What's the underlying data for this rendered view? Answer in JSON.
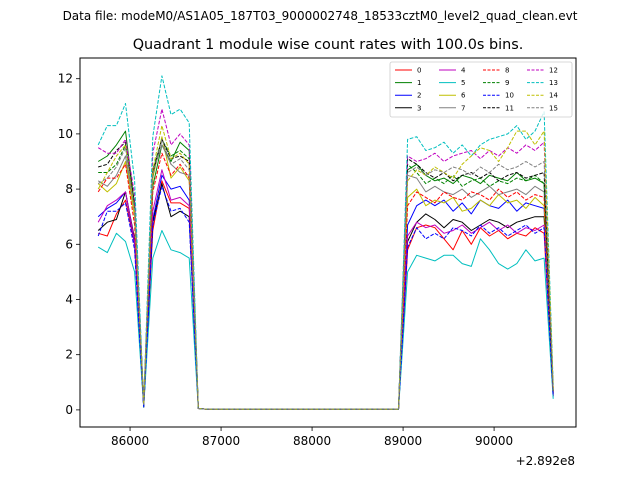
{
  "figure": {
    "suptitle": "Data file: modeM0/AS1A05_187T03_9000002748_18533cztM0_level2_quad_clean.evt"
  },
  "chart_data": {
    "type": "line",
    "title": "Quadrant 1 module wise count rates with 100.0s bins.",
    "xlabel": "",
    "ylabel": "",
    "x_offset_label": "+2.892e8",
    "xlim": [
      85450,
      90900
    ],
    "ylim": [
      -0.62,
      12.75
    ],
    "xticks": [
      86000,
      87000,
      88000,
      89000,
      90000
    ],
    "xtick_labels": [
      "86000",
      "87000",
      "88000",
      "89000",
      "90000"
    ],
    "yticks": [
      0,
      2,
      4,
      6,
      8,
      10,
      12
    ],
    "ytick_labels": [
      "0",
      "2",
      "4",
      "6",
      "8",
      "10",
      "12"
    ],
    "legend_position": "top-right",
    "legend_columns": 4,
    "x": [
      85650,
      85750,
      85850,
      85950,
      86050,
      86150,
      86250,
      86350,
      86450,
      86550,
      86650,
      86750,
      86850,
      86950,
      87050,
      87150,
      87250,
      87350,
      87450,
      87550,
      87650,
      87750,
      87850,
      87950,
      88050,
      88150,
      88250,
      88350,
      88450,
      88550,
      88650,
      88750,
      88850,
      88950,
      89050,
      89150,
      89250,
      89350,
      89450,
      89550,
      89650,
      89750,
      89850,
      89950,
      90050,
      90150,
      90250,
      90350,
      90450,
      90550,
      90650
    ],
    "series": [
      {
        "name": "0",
        "color": "#ff0000",
        "style": "solid",
        "values": [
          6.4,
          6.3,
          7.1,
          7.6,
          6.0,
          0.1,
          6.5,
          8.3,
          7.5,
          7.5,
          7.3,
          0.05,
          0.02,
          0.02,
          0.02,
          0.02,
          0.02,
          0.02,
          0.02,
          0.02,
          0.02,
          0.02,
          0.02,
          0.02,
          0.02,
          0.02,
          0.02,
          0.02,
          0.02,
          0.02,
          0.02,
          0.02,
          0.02,
          0.02,
          5.8,
          6.6,
          6.7,
          6.6,
          6.2,
          5.8,
          6.5,
          6.0,
          6.6,
          6.3,
          6.5,
          6.2,
          6.4,
          6.3,
          6.6,
          6.4,
          0.5
        ]
      },
      {
        "name": "1",
        "color": "#008000",
        "style": "solid",
        "values": [
          9.0,
          9.2,
          9.6,
          10.1,
          7.4,
          0.2,
          8.1,
          9.6,
          9.0,
          9.7,
          9.4,
          0.05,
          0.02,
          0.02,
          0.02,
          0.02,
          0.02,
          0.02,
          0.02,
          0.02,
          0.02,
          0.02,
          0.02,
          0.02,
          0.02,
          0.02,
          0.02,
          0.02,
          0.02,
          0.02,
          0.02,
          0.02,
          0.02,
          0.02,
          8.7,
          8.9,
          8.5,
          8.3,
          8.4,
          8.2,
          8.5,
          8.4,
          8.2,
          8.5,
          8.4,
          8.3,
          8.6,
          8.3,
          8.4,
          8.2,
          0.7
        ]
      },
      {
        "name": "2",
        "color": "#0000ff",
        "style": "solid",
        "values": [
          7.0,
          7.3,
          7.5,
          7.9,
          6.0,
          0.1,
          6.9,
          8.5,
          8.0,
          8.1,
          7.6,
          0.05,
          0.02,
          0.02,
          0.02,
          0.02,
          0.02,
          0.02,
          0.02,
          0.02,
          0.02,
          0.02,
          0.02,
          0.02,
          0.02,
          0.02,
          0.02,
          0.02,
          0.02,
          0.02,
          0.02,
          0.02,
          0.02,
          0.02,
          6.7,
          7.4,
          7.6,
          7.4,
          7.6,
          7.2,
          7.5,
          7.1,
          7.6,
          7.4,
          7.3,
          7.6,
          7.2,
          7.5,
          7.4,
          7.3,
          0.5
        ]
      },
      {
        "name": "3",
        "color": "#000000",
        "style": "solid",
        "values": [
          6.5,
          6.8,
          6.9,
          7.9,
          6.2,
          0.1,
          6.8,
          8.2,
          7.0,
          7.2,
          7.0,
          0.05,
          0.02,
          0.02,
          0.02,
          0.02,
          0.02,
          0.02,
          0.02,
          0.02,
          0.02,
          0.02,
          0.02,
          0.02,
          0.02,
          0.02,
          0.02,
          0.02,
          0.02,
          0.02,
          0.02,
          0.02,
          0.02,
          0.02,
          6.1,
          6.8,
          7.1,
          6.9,
          6.6,
          6.9,
          6.8,
          6.5,
          6.7,
          6.9,
          6.8,
          6.6,
          6.8,
          6.9,
          7.0,
          7.0,
          0.6
        ]
      },
      {
        "name": "4",
        "color": "#bf00bf",
        "style": "solid",
        "values": [
          6.8,
          7.4,
          7.6,
          7.9,
          6.1,
          0.1,
          7.2,
          8.7,
          7.6,
          7.7,
          7.4,
          0.05,
          0.02,
          0.02,
          0.02,
          0.02,
          0.02,
          0.02,
          0.02,
          0.02,
          0.02,
          0.02,
          0.02,
          0.02,
          0.02,
          0.02,
          0.02,
          0.02,
          0.02,
          0.02,
          0.02,
          0.02,
          0.02,
          0.02,
          6.3,
          6.8,
          6.6,
          6.7,
          6.4,
          6.5,
          6.7,
          6.4,
          6.6,
          6.8,
          6.5,
          6.7,
          6.4,
          6.6,
          6.5,
          6.7,
          0.5
        ]
      },
      {
        "name": "5",
        "color": "#00bfbf",
        "style": "solid",
        "values": [
          5.9,
          5.7,
          6.4,
          6.1,
          5.0,
          0.1,
          5.5,
          6.5,
          5.8,
          5.7,
          5.5,
          0.05,
          0.02,
          0.02,
          0.02,
          0.02,
          0.02,
          0.02,
          0.02,
          0.02,
          0.02,
          0.02,
          0.02,
          0.02,
          0.02,
          0.02,
          0.02,
          0.02,
          0.02,
          0.02,
          0.02,
          0.02,
          0.02,
          0.02,
          5.0,
          5.6,
          5.5,
          5.4,
          5.6,
          5.6,
          5.3,
          5.2,
          6.2,
          5.8,
          5.3,
          5.1,
          5.3,
          5.8,
          5.4,
          5.5,
          0.4
        ]
      },
      {
        "name": "6",
        "color": "#bfbf00",
        "style": "solid",
        "values": [
          8.2,
          7.9,
          8.2,
          9.0,
          7.0,
          0.2,
          8.4,
          9.9,
          8.4,
          8.8,
          8.3,
          0.05,
          0.02,
          0.02,
          0.02,
          0.02,
          0.02,
          0.02,
          0.02,
          0.02,
          0.02,
          0.02,
          0.02,
          0.02,
          0.02,
          0.02,
          0.02,
          0.02,
          0.02,
          0.02,
          0.02,
          0.02,
          0.02,
          0.02,
          7.7,
          8.0,
          7.4,
          7.6,
          7.5,
          7.7,
          7.2,
          7.3,
          7.6,
          7.4,
          7.8,
          7.5,
          7.6,
          7.3,
          7.7,
          7.4,
          0.6
        ]
      },
      {
        "name": "7",
        "color": "#808080",
        "style": "solid",
        "values": [
          8.3,
          8.1,
          8.5,
          9.2,
          7.2,
          0.2,
          8.6,
          9.6,
          8.9,
          8.6,
          8.5,
          0.05,
          0.02,
          0.02,
          0.02,
          0.02,
          0.02,
          0.02,
          0.02,
          0.02,
          0.02,
          0.02,
          0.02,
          0.02,
          0.02,
          0.02,
          0.02,
          0.02,
          0.02,
          0.02,
          0.02,
          0.02,
          0.02,
          0.02,
          8.5,
          8.4,
          7.9,
          8.1,
          7.9,
          7.8,
          8.0,
          7.7,
          7.9,
          8.1,
          7.8,
          7.9,
          8.0,
          7.8,
          8.1,
          7.9,
          0.6
        ]
      },
      {
        "name": "8",
        "color": "#ff0000",
        "style": "dashed",
        "values": [
          7.9,
          8.4,
          8.4,
          8.9,
          6.7,
          0.2,
          7.9,
          9.3,
          8.5,
          8.9,
          8.4,
          0.05,
          0.02,
          0.02,
          0.02,
          0.02,
          0.02,
          0.02,
          0.02,
          0.02,
          0.02,
          0.02,
          0.02,
          0.02,
          0.02,
          0.02,
          0.02,
          0.02,
          0.02,
          0.02,
          0.02,
          0.02,
          0.02,
          0.02,
          7.4,
          7.9,
          7.7,
          7.5,
          7.9,
          7.7,
          7.6,
          7.9,
          7.8,
          7.6,
          8.0,
          7.7,
          7.9,
          7.6,
          7.8,
          7.7,
          0.6
        ]
      },
      {
        "name": "9",
        "color": "#008000",
        "style": "dashed",
        "values": [
          8.6,
          8.6,
          8.9,
          9.6,
          7.3,
          0.2,
          8.7,
          9.8,
          9.2,
          9.4,
          9.1,
          0.05,
          0.02,
          0.02,
          0.02,
          0.02,
          0.02,
          0.02,
          0.02,
          0.02,
          0.02,
          0.02,
          0.02,
          0.02,
          0.02,
          0.02,
          0.02,
          0.02,
          0.02,
          0.02,
          0.02,
          0.02,
          0.02,
          0.02,
          8.9,
          8.6,
          8.2,
          8.4,
          8.2,
          8.5,
          8.1,
          8.3,
          8.4,
          8.1,
          8.3,
          8.2,
          8.4,
          8.3,
          8.5,
          8.2,
          0.7
        ]
      },
      {
        "name": "10",
        "color": "#0000ff",
        "style": "dashed",
        "values": [
          6.3,
          7.2,
          7.2,
          7.5,
          5.8,
          0.1,
          6.7,
          8.1,
          7.2,
          7.3,
          6.8,
          0.05,
          0.02,
          0.02,
          0.02,
          0.02,
          0.02,
          0.02,
          0.02,
          0.02,
          0.02,
          0.02,
          0.02,
          0.02,
          0.02,
          0.02,
          0.02,
          0.02,
          0.02,
          0.02,
          0.02,
          0.02,
          0.02,
          0.02,
          5.9,
          6.6,
          6.2,
          6.4,
          6.2,
          6.6,
          6.5,
          6.3,
          6.7,
          6.4,
          6.6,
          6.3,
          6.5,
          6.7,
          6.4,
          6.6,
          0.5
        ]
      },
      {
        "name": "11",
        "color": "#000000",
        "style": "dashed",
        "values": [
          8.8,
          8.9,
          9.4,
          9.7,
          7.4,
          0.2,
          8.6,
          9.8,
          9.1,
          9.2,
          9.0,
          0.05,
          0.02,
          0.02,
          0.02,
          0.02,
          0.02,
          0.02,
          0.02,
          0.02,
          0.02,
          0.02,
          0.02,
          0.02,
          0.02,
          0.02,
          0.02,
          0.02,
          0.02,
          0.02,
          0.02,
          0.02,
          0.02,
          0.02,
          9.1,
          8.9,
          8.6,
          8.4,
          8.6,
          8.3,
          8.5,
          8.6,
          8.4,
          8.6,
          8.3,
          8.5,
          8.6,
          8.4,
          8.5,
          8.6,
          0.7
        ]
      },
      {
        "name": "12",
        "color": "#bf00bf",
        "style": "dashed",
        "values": [
          9.5,
          9.3,
          9.3,
          9.8,
          7.8,
          0.2,
          9.3,
          10.9,
          9.6,
          10.0,
          9.6,
          0.05,
          0.02,
          0.02,
          0.02,
          0.02,
          0.02,
          0.02,
          0.02,
          0.02,
          0.02,
          0.02,
          0.02,
          0.02,
          0.02,
          0.02,
          0.02,
          0.02,
          0.02,
          0.02,
          0.02,
          0.02,
          0.02,
          0.02,
          9.2,
          9.0,
          9.1,
          9.3,
          9.0,
          9.2,
          9.3,
          9.4,
          9.1,
          9.4,
          9.2,
          9.5,
          9.3,
          9.6,
          9.4,
          9.7,
          0.8
        ]
      },
      {
        "name": "13",
        "color": "#00bfbf",
        "style": "dashed",
        "values": [
          9.6,
          10.3,
          10.3,
          11.1,
          8.3,
          0.2,
          9.9,
          12.1,
          10.7,
          10.9,
          10.4,
          0.05,
          0.02,
          0.02,
          0.02,
          0.02,
          0.02,
          0.02,
          0.02,
          0.02,
          0.02,
          0.02,
          0.02,
          0.02,
          0.02,
          0.02,
          0.02,
          0.02,
          0.02,
          0.02,
          0.02,
          0.02,
          0.02,
          0.02,
          9.8,
          9.9,
          9.4,
          9.5,
          9.7,
          9.3,
          9.6,
          9.2,
          9.6,
          9.8,
          9.9,
          10.0,
          10.3,
          9.8,
          10.1,
          10.8,
          0.9
        ]
      },
      {
        "name": "14",
        "color": "#bfbf00",
        "style": "dashed",
        "values": [
          8.0,
          8.6,
          9.2,
          9.6,
          7.2,
          0.2,
          8.7,
          10.3,
          9.1,
          9.3,
          8.9,
          0.05,
          0.02,
          0.02,
          0.02,
          0.02,
          0.02,
          0.02,
          0.02,
          0.02,
          0.02,
          0.02,
          0.02,
          0.02,
          0.02,
          0.02,
          0.02,
          0.02,
          0.02,
          0.02,
          0.02,
          0.02,
          0.02,
          0.02,
          8.3,
          8.7,
          8.5,
          8.8,
          8.6,
          8.4,
          8.9,
          9.2,
          9.5,
          9.4,
          9.0,
          9.5,
          10.1,
          10.1,
          9.6,
          10.1,
          0.8
        ]
      },
      {
        "name": "15",
        "color": "#808080",
        "style": "dashed",
        "values": [
          8.2,
          8.4,
          8.8,
          9.5,
          7.2,
          0.2,
          8.5,
          9.8,
          8.9,
          9.1,
          8.7,
          0.05,
          0.02,
          0.02,
          0.02,
          0.02,
          0.02,
          0.02,
          0.02,
          0.02,
          0.02,
          0.02,
          0.02,
          0.02,
          0.02,
          0.02,
          0.02,
          0.02,
          0.02,
          0.02,
          0.02,
          0.02,
          0.02,
          0.02,
          8.6,
          8.8,
          8.5,
          8.7,
          8.6,
          8.8,
          8.7,
          8.5,
          8.8,
          8.6,
          8.9,
          8.7,
          8.8,
          9.0,
          8.8,
          9.0,
          0.7
        ]
      }
    ]
  }
}
